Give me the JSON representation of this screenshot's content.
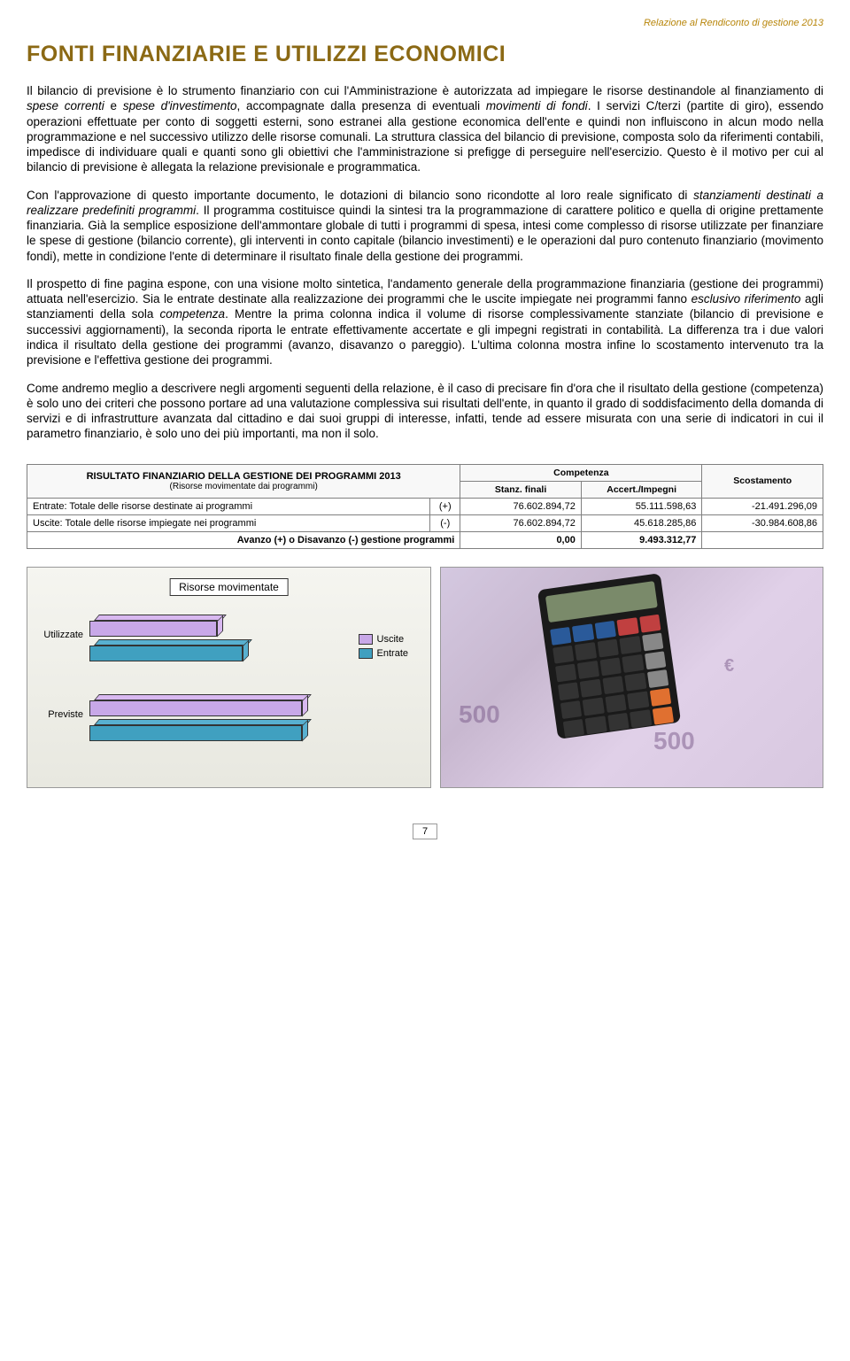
{
  "header_note": "Relazione al Rendiconto di gestione 2013",
  "title": "FONTI FINANZIARIE E UTILIZZI ECONOMICI",
  "paragraphs": {
    "p1_a": "Il bilancio di previsione è lo strumento finanziario con cui l'Amministrazione è autorizzata ad impiegare le risorse destinandole al finanziamento di ",
    "p1_i1": "spese correnti",
    "p1_b": " e ",
    "p1_i2": "spese d'investimento",
    "p1_c": ", accompagnate dalla presenza di eventuali ",
    "p1_i3": "movimenti di fondi",
    "p1_d": ". I servizi C/terzi (partite di giro), essendo operazioni effettuate per conto di soggetti esterni, sono estranei alla gestione economica dell'ente e quindi non influiscono in alcun modo nella programmazione e nel successivo utilizzo delle risorse comunali. La struttura classica del bilancio di previsione, composta solo da riferimenti contabili, impedisce di individuare quali e quanti sono gli obiettivi che l'amministrazione si prefigge di perseguire nell'esercizio. Questo è il motivo per cui al bilancio di previsione è allegata la relazione previsionale e programmatica.",
    "p2_a": "Con l'approvazione di questo importante documento, le dotazioni di bilancio sono ricondotte al loro reale significato di ",
    "p2_i1": "stanziamenti destinati a realizzare predefiniti programmi",
    "p2_b": ". Il programma costituisce quindi la sintesi tra la programmazione di carattere politico e quella di origine prettamente finanziaria. Già la semplice esposizione dell'ammontare globale di tutti i programmi di spesa, intesi come complesso di risorse utilizzate per finanziare le spese di gestione (bilancio corrente), gli interventi in conto capitale (bilancio investimenti) e le operazioni dal puro contenuto finanziario (movimento fondi), mette in condizione l'ente di determinare il risultato finale della gestione dei programmi.",
    "p3_a": "Il prospetto di fine pagina espone, con una visione molto sintetica, l'andamento generale della programmazione finanziaria (gestione dei programmi) attuata nell'esercizio. Sia le entrate destinate alla realizzazione dei programmi che le uscite impiegate nei programmi fanno ",
    "p3_i1": "esclusivo riferimento",
    "p3_b": " agli stanziamenti della sola ",
    "p3_i2": "competenza",
    "p3_c": ". Mentre la prima colonna indica il volume di risorse complessivamente stanziate (bilancio di previsione e successivi aggiornamenti), la seconda riporta le entrate effettivamente accertate e gli impegni registrati in contabilità. La differenza tra i due valori indica il risultato della gestione dei programmi (avanzo, disavanzo o pareggio). L'ultima colonna mostra infine lo scostamento intervenuto tra la previsione e l'effettiva gestione dei programmi.",
    "p4": "Come andremo meglio a descrivere negli argomenti seguenti della relazione, è il caso di precisare fin d'ora che il risultato della gestione (competenza) è solo uno dei criteri che possono portare ad una valutazione complessiva sui risultati dell'ente, in quanto il grado di soddisfacimento della domanda di servizi e di infrastrutture avanzata dal cittadino e dai suoi gruppi di interesse, infatti, tende ad essere misurata con una serie di indicatori in cui il parametro finanziario, è solo uno dei più importanti, ma non il solo."
  },
  "table": {
    "header_title": "RISULTATO FINANZIARIO DELLA GESTIONE DEI PROGRAMMI 2013",
    "header_sub": "(Risorse movimentate dai programmi)",
    "col_competenza": "Competenza",
    "col_stanz": "Stanz. finali",
    "col_accert": "Accert./Impegni",
    "col_scost": "Scostamento",
    "rows": [
      {
        "desc": "Entrate: Totale delle risorse destinate ai programmi",
        "sign": "(+)",
        "stanz": "76.602.894,72",
        "accert": "55.111.598,63",
        "scost": "-21.491.296,09"
      },
      {
        "desc": "Uscite: Totale delle risorse impiegate nei programmi",
        "sign": "(-)",
        "stanz": "76.602.894,72",
        "accert": "45.618.285,86",
        "scost": "-30.984.608,86"
      }
    ],
    "total_label": "Avanzo (+) o Disavanzo (-) gestione programmi",
    "total_stanz": "0,00",
    "total_accert": "9.493.312,77"
  },
  "chart": {
    "title": "Risorse movimentate",
    "categories": [
      "Utilizzate",
      "Previste"
    ],
    "series": [
      {
        "name": "Uscite",
        "color": "#c8a8e8",
        "color_top": "#d8b8f0"
      },
      {
        "name": "Entrate",
        "color": "#40a0c0",
        "color_top": "#58b0d0"
      }
    ],
    "bars": {
      "utilizzate": {
        "uscite_pct": 60,
        "entrate_pct": 72
      },
      "previste": {
        "uscite_pct": 100,
        "entrate_pct": 100
      }
    }
  },
  "page_number": "7"
}
